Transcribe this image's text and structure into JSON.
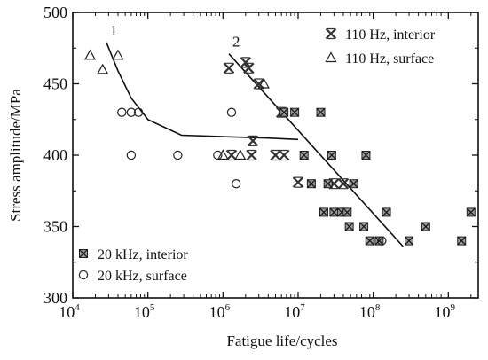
{
  "chart_data": {
    "type": "scatter",
    "xlabel": "Fatigue life/cycles",
    "ylabel": "Stress amplitude/MPa",
    "xscale": "log",
    "xlim": [
      10000,
      2500000000
    ],
    "ylim": [
      300,
      500
    ],
    "x_ticks": [
      {
        "value": 10000,
        "base": "10",
        "exp": "4"
      },
      {
        "value": 100000,
        "base": "10",
        "exp": "5"
      },
      {
        "value": 1000000,
        "base": "10",
        "exp": "6"
      },
      {
        "value": 10000000,
        "base": "10",
        "exp": "7"
      },
      {
        "value": 100000000,
        "base": "10",
        "exp": "8"
      },
      {
        "value": 1000000000,
        "base": "10",
        "exp": "9"
      }
    ],
    "y_ticks": [
      "300",
      "350",
      "400",
      "450",
      "500"
    ],
    "legend_top": {
      "position": "top-right",
      "entries": [
        "110 Hz, interior",
        "110 Hz, surface"
      ]
    },
    "legend_bottom": {
      "position": "bottom-left",
      "entries": [
        "20 kHz, interior",
        "20 kHz, surface"
      ]
    },
    "series": [
      {
        "name": "110 Hz, interior",
        "marker": "star-x",
        "points": [
          [
            1200000,
            461
          ],
          [
            2000000,
            465
          ],
          [
            2200000,
            461
          ],
          [
            3000000,
            450
          ],
          [
            6000000,
            430
          ],
          [
            2500000,
            410
          ],
          [
            1300000,
            400
          ],
          [
            2400000,
            400
          ],
          [
            5000000,
            400
          ],
          [
            6500000,
            400
          ],
          [
            10000000,
            381
          ],
          [
            30000000,
            380
          ],
          [
            40000000,
            380
          ]
        ]
      },
      {
        "name": "110 Hz, surface",
        "marker": "triangle",
        "points": [
          [
            17000,
            470
          ],
          [
            25000,
            460
          ],
          [
            40000,
            470
          ],
          [
            3500000,
            450
          ],
          [
            1000000,
            400
          ],
          [
            1700000,
            400
          ]
        ]
      },
      {
        "name": "20 kHz, interior",
        "marker": "boxed-x",
        "points": [
          [
            6500000,
            430
          ],
          [
            9000000,
            430
          ],
          [
            20000000,
            430
          ],
          [
            12000000,
            400
          ],
          [
            28000000,
            400
          ],
          [
            80000000,
            400
          ],
          [
            15000000,
            380
          ],
          [
            25000000,
            380
          ],
          [
            55000000,
            380
          ],
          [
            22000000,
            360
          ],
          [
            30000000,
            360
          ],
          [
            38000000,
            360
          ],
          [
            45000000,
            360
          ],
          [
            150000000,
            360
          ],
          [
            48000000,
            350
          ],
          [
            75000000,
            350
          ],
          [
            500000000,
            350
          ],
          [
            90000000,
            340
          ],
          [
            120000000,
            340
          ],
          [
            300000000,
            340
          ],
          [
            1500000000,
            340
          ],
          [
            2000000000,
            360
          ]
        ]
      },
      {
        "name": "20 kHz, surface",
        "marker": "circle",
        "points": [
          [
            45000,
            430
          ],
          [
            60000,
            430
          ],
          [
            75000,
            430
          ],
          [
            60000,
            400
          ],
          [
            250000,
            400
          ],
          [
            850000,
            400
          ],
          [
            1300000,
            430
          ],
          [
            1500000,
            380
          ],
          [
            130000000,
            340
          ]
        ]
      }
    ],
    "curves": [
      {
        "label": "1",
        "points": [
          [
            28000,
            479
          ],
          [
            40000,
            459
          ],
          [
            60000,
            440
          ],
          [
            100000,
            425
          ],
          [
            280000,
            414
          ],
          [
            1000000,
            413
          ],
          [
            4000000,
            412
          ],
          [
            10000000,
            411
          ]
        ]
      },
      {
        "label": "2",
        "points": [
          [
            1200000,
            471
          ],
          [
            250000000,
            336
          ]
        ]
      }
    ]
  }
}
